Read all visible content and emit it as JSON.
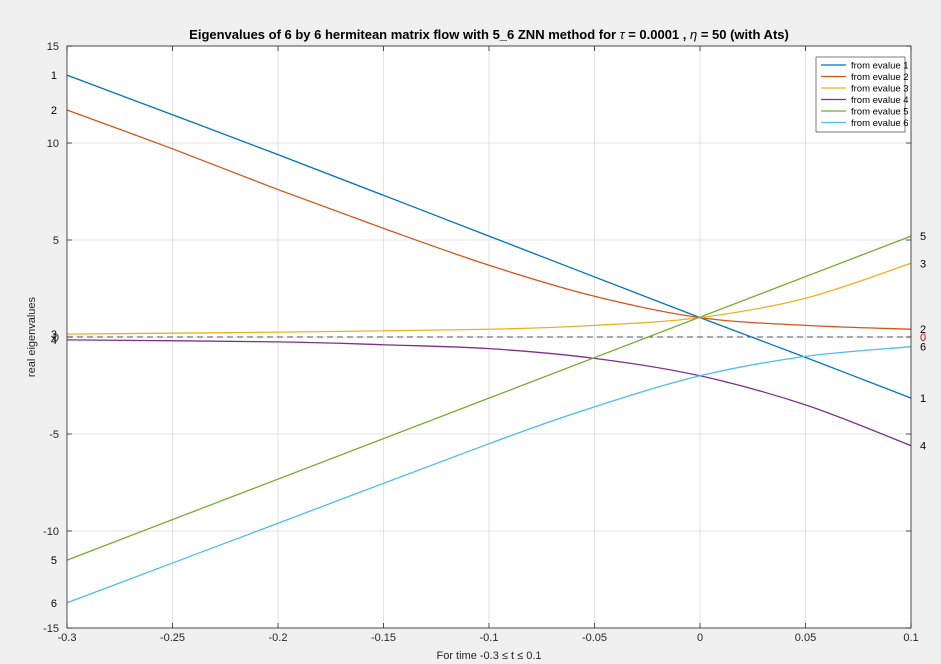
{
  "chart_data": {
    "type": "line",
    "title_parts": [
      "Eigenvalues of 6 by 6 hermitean matrix flow with 5_6 ZNN method for ",
      "τ",
      " = 0.0001 , ",
      "η",
      " = 50   (with  Ats)"
    ],
    "xlabel": "For time -0.3 ≤ t ≤ 0.1",
    "ylabel": "real eigenvalues",
    "xlim": [
      -0.3,
      0.1
    ],
    "ylim": [
      -15,
      15
    ],
    "xticks": [
      -0.3,
      -0.25,
      -0.2,
      -0.15,
      -0.1,
      -0.05,
      0,
      0.05,
      0.1
    ],
    "xtick_labels": [
      "-0.3",
      "-0.25",
      "-0.2",
      "-0.15",
      "-0.1",
      "-0.05",
      "0",
      "0.05",
      "0.1"
    ],
    "yticks": [
      15,
      10,
      5,
      0,
      -5,
      -10,
      -15
    ],
    "ytick_labels": [
      "15",
      "10",
      "5",
      "0",
      "-5",
      "-10",
      "-15"
    ],
    "grid": true,
    "legend_placement": "top-right",
    "zero_line_label": "0",
    "series": [
      {
        "name": "from evalue 1",
        "color": "#0072BD",
        "start_label": "1",
        "end_label": "1",
        "x": [
          -0.3,
          -0.2,
          -0.1,
          0,
          0.05,
          0.1
        ],
        "y": [
          13.5,
          9.4,
          5.2,
          1.0,
          -1.05,
          -3.15
        ]
      },
      {
        "name": "from evalue 2",
        "color": "#D95319",
        "start_label": "2",
        "end_label": "2",
        "x": [
          -0.3,
          -0.25,
          -0.2,
          -0.15,
          -0.1,
          -0.05,
          0,
          0.05,
          0.1
        ],
        "y": [
          11.7,
          9.7,
          7.6,
          5.6,
          3.7,
          2.1,
          1.0,
          0.6,
          0.4
        ]
      },
      {
        "name": "from evalue 3",
        "color": "#EDB120",
        "start_label": "3",
        "end_label": "3",
        "x": [
          -0.3,
          -0.2,
          -0.1,
          -0.05,
          0,
          0.05,
          0.1
        ],
        "y": [
          0.15,
          0.25,
          0.4,
          0.6,
          1.0,
          2.0,
          3.8
        ]
      },
      {
        "name": "from evalue 4",
        "color": "#7E2F8E",
        "start_label": "4",
        "end_label": "4",
        "x": [
          -0.3,
          -0.2,
          -0.15,
          -0.1,
          -0.05,
          0,
          0.05,
          0.1
        ],
        "y": [
          -0.15,
          -0.25,
          -0.4,
          -0.6,
          -1.1,
          -2.0,
          -3.5,
          -5.6
        ]
      },
      {
        "name": "from evalue 5",
        "color": "#77AC30",
        "start_label": "5",
        "end_label": "5",
        "x": [
          -0.3,
          0.1
        ],
        "y": [
          -11.5,
          5.2
        ]
      },
      {
        "name": "from evalue 6",
        "color": "#4DBEEE",
        "start_label": "6",
        "end_label": "6",
        "x": [
          -0.3,
          -0.2,
          -0.1,
          -0.05,
          0,
          0.05,
          0.1
        ],
        "y": [
          -13.7,
          -9.6,
          -5.5,
          -3.6,
          -2.0,
          -1.0,
          -0.5
        ]
      }
    ]
  }
}
